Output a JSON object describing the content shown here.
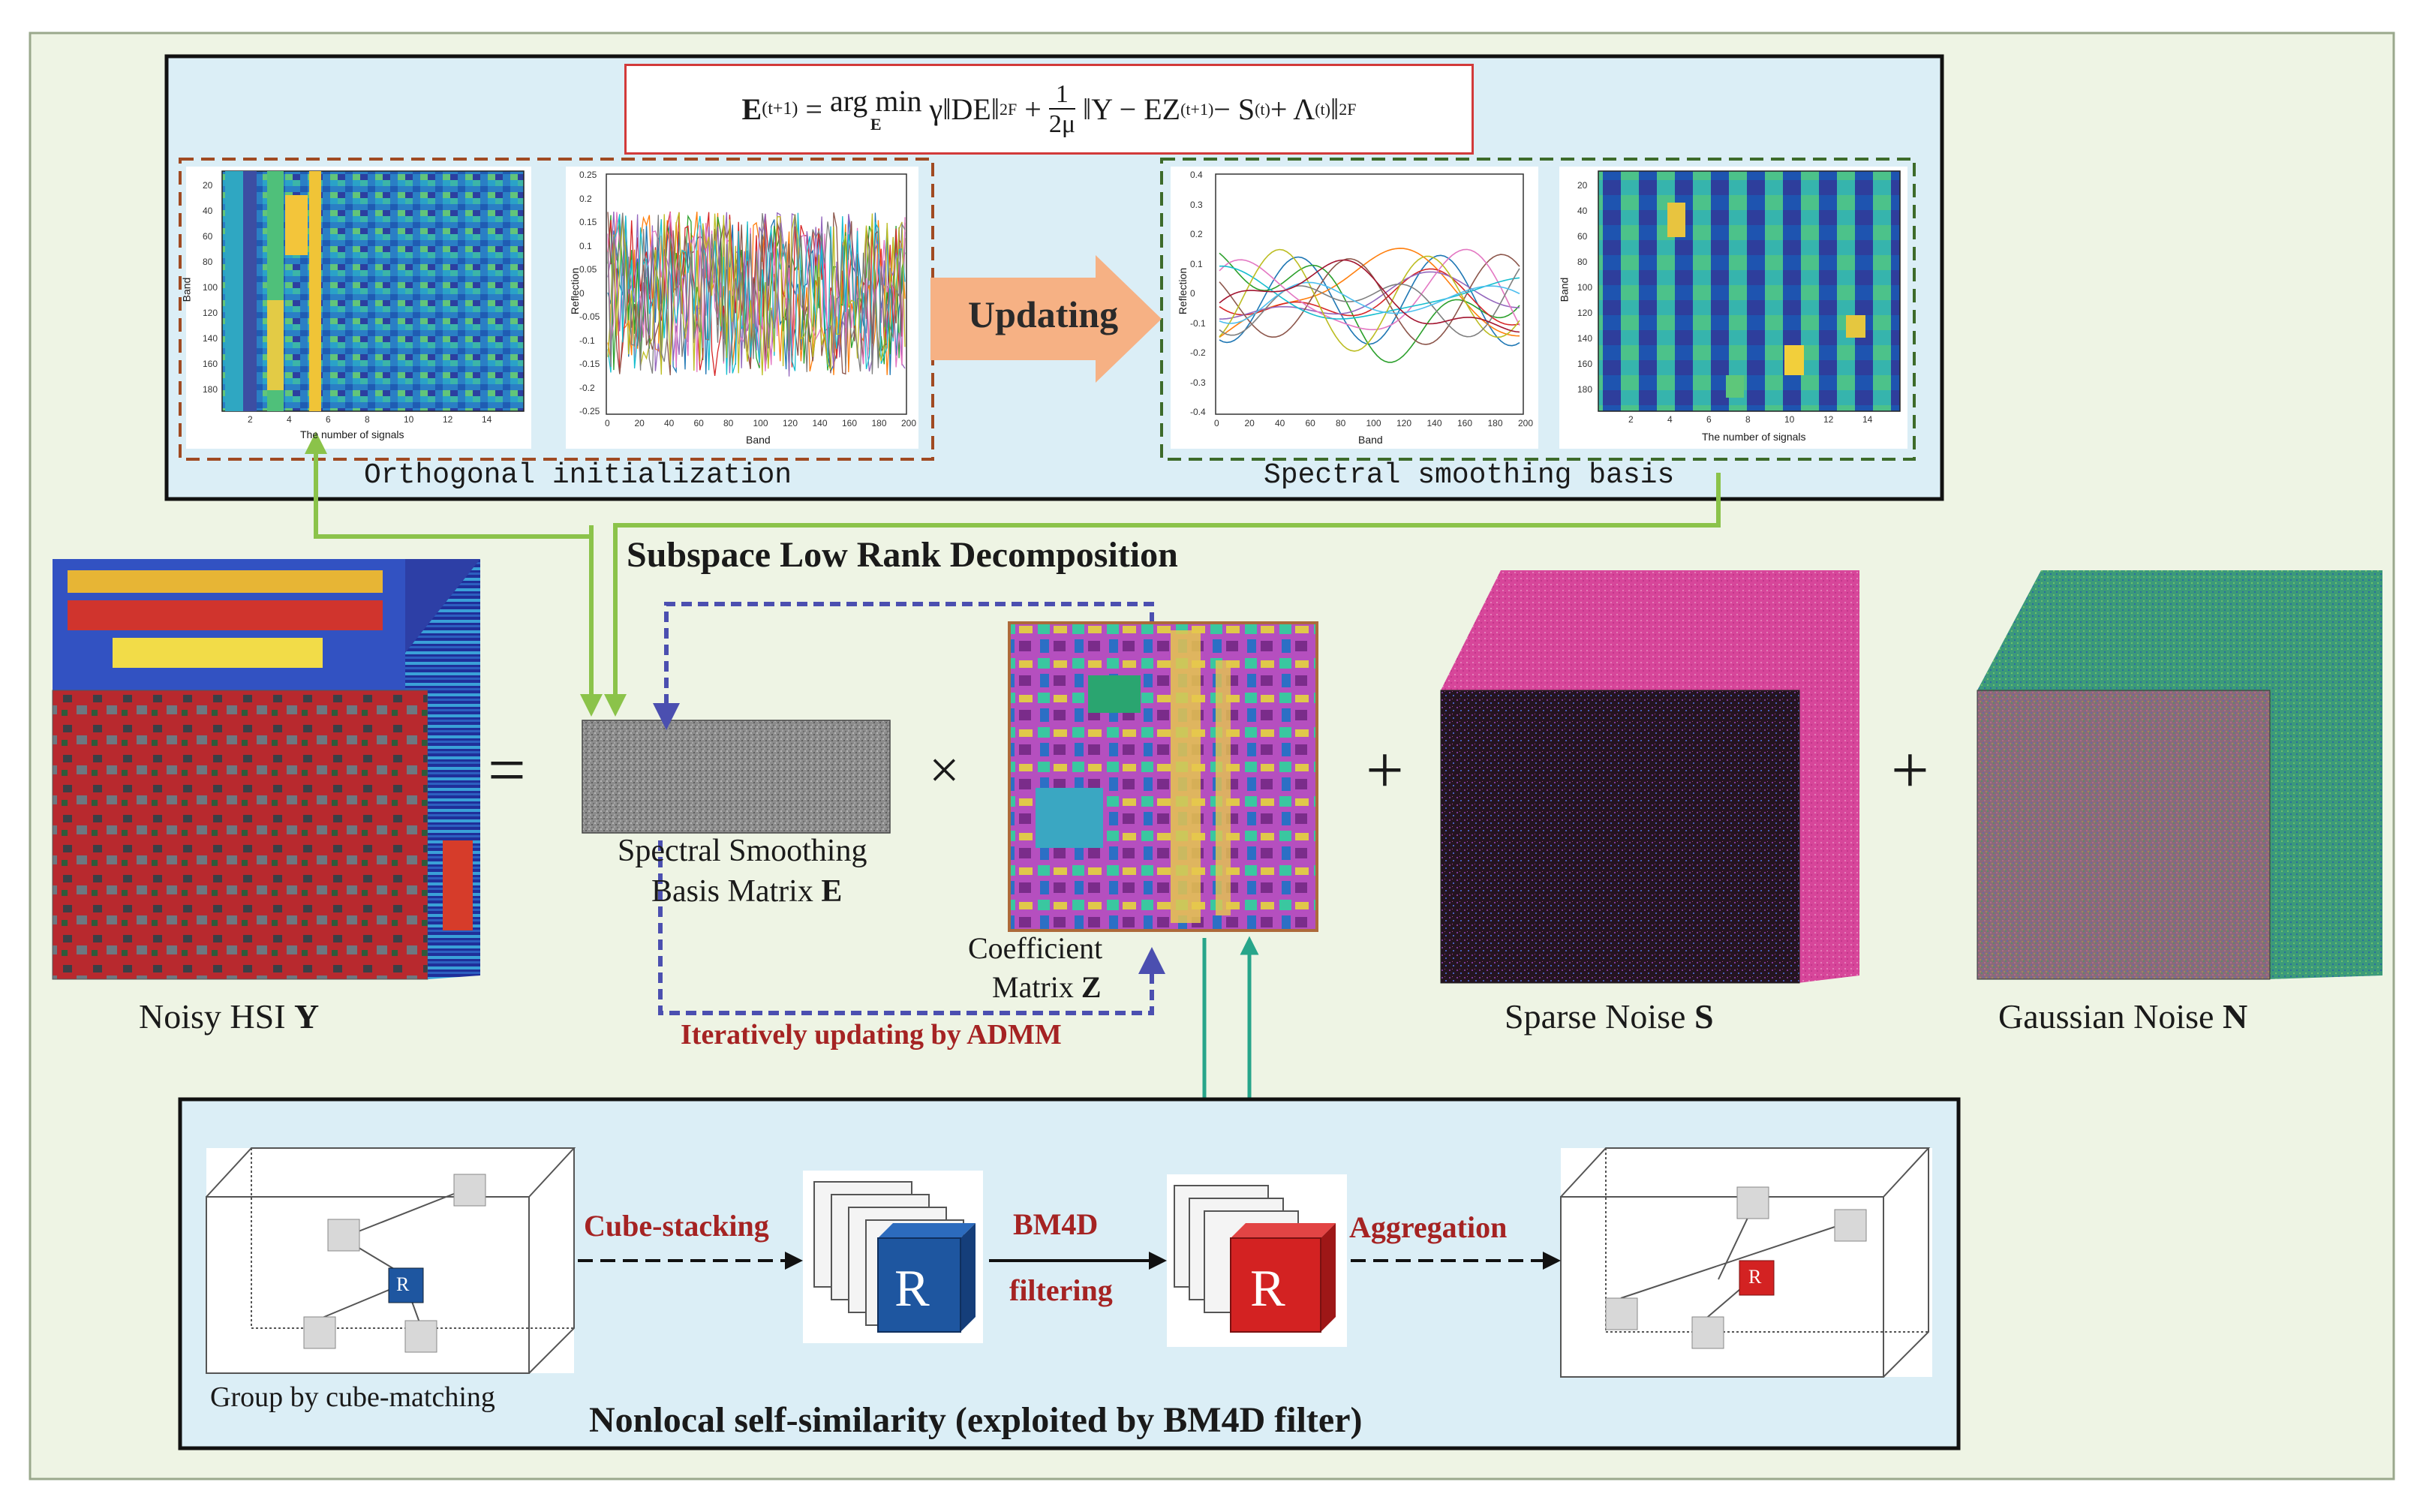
{
  "formula": {
    "text": "E(t+1) = arg min_E γ‖DE‖²_F + (1/2μ)‖Y − EZ(t+1) − S(t) + Λ(t)‖²_F",
    "lhs": "E",
    "lhs_sup": "(t+1)",
    "op": "arg min",
    "sub": "E",
    "term1": "γ‖DE‖",
    "frac_num": "1",
    "frac_den": "2μ",
    "term2": "‖Y − EZ",
    "term2_sup": "(t+1)",
    "term3": " − S",
    "term3_sup": "(t)",
    "term4": " + Λ",
    "term4_sup": "(t)",
    "norm_close": "‖",
    "sq": "2",
    "F": "F"
  },
  "top_panel": {
    "updating_label": "Updating",
    "left_caption": "Orthogonal initialization",
    "right_caption": "Spectral smoothing basis"
  },
  "plots": {
    "band_ylabel": "Band",
    "signals_xlabel": "The number of signals",
    "reflection_ylabel": "Reflection",
    "band_xlabel": "Band",
    "heat_yticks": [
      "20",
      "40",
      "60",
      "80",
      "100",
      "120",
      "140",
      "160",
      "180"
    ],
    "heat_xticks": [
      "2",
      "4",
      "6",
      "8",
      "10",
      "12",
      "14"
    ],
    "line_xticks": [
      "0",
      "20",
      "40",
      "60",
      "80",
      "100",
      "120",
      "140",
      "160",
      "180",
      "200"
    ],
    "left_line_yticks": [
      "0.25",
      "0.2",
      "0.15",
      "0.1",
      "0.05",
      "0",
      "-0.05",
      "-0.1",
      "-0.15",
      "-0.2",
      "-0.25"
    ],
    "right_line_yticks": [
      "0.4",
      "0.3",
      "0.2",
      "0.1",
      "0",
      "-0.1",
      "-0.2",
      "-0.3",
      "-0.4"
    ]
  },
  "middle": {
    "section_title": "Subspace Low Rank Decomposition",
    "equals": "=",
    "times": "×",
    "plus1": "+",
    "plus2": "+",
    "noisy_label": "Noisy HSI ",
    "noisy_sym": "Y",
    "basis_label_1": "Spectral Smoothing",
    "basis_label_2": "Basis Matrix ",
    "basis_sym": "E",
    "coef_label_1": "Coefficient",
    "coef_label_2": "Matrix ",
    "coef_sym": "Z",
    "admm_label": "Iteratively updating by ADMM",
    "sparse_label": "Sparse Noise ",
    "sparse_sym": "S",
    "gauss_label": "Gaussian Noise ",
    "gauss_sym": "N"
  },
  "bottom_panel": {
    "cube_stacking": "Cube-stacking",
    "bm4d": "BM4D",
    "filtering": "filtering",
    "aggregation": "Aggregation",
    "group_label": "Group by cube-matching",
    "title": "Nonlocal self-similarity (exploited by BM4D filter)",
    "ref_letter": "R"
  },
  "colors": {
    "background": "#eef4e4",
    "panel_bg": "#dbeef6",
    "green_arrow": "#8bc34a",
    "blue_dash": "#4b4fb0",
    "teal_arrow": "#27a58a",
    "orange_arrow": "#f6b184",
    "brown_dash": "#a04a22",
    "dark_green_dash": "#3d6b2a",
    "admm_red": "#a52323",
    "cube_blue": "#1e56a0",
    "cube_red": "#d32222",
    "magenta": "#d7469a"
  }
}
